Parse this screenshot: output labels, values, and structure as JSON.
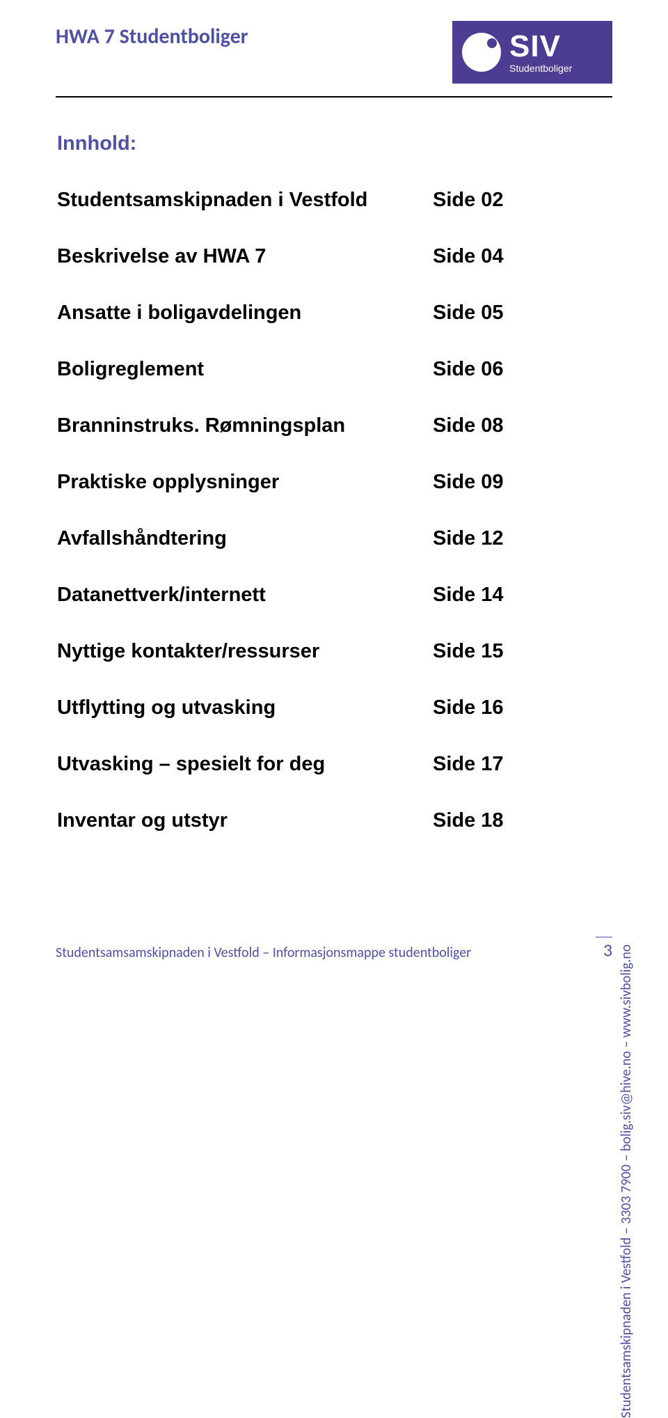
{
  "header": {
    "title": "HWA 7 Studentboliger",
    "logo": {
      "main": "SIV",
      "sub": "Studentboliger",
      "bg_color": "#4c3c92",
      "circle_color": "#ffffff"
    }
  },
  "toc": {
    "heading": "Innhold:",
    "items": [
      {
        "label": "Studentsamskipnaden i Vestfold",
        "page": "Side 02"
      },
      {
        "label": "Beskrivelse av HWA 7",
        "page": "Side 04"
      },
      {
        "label": "Ansatte i boligavdelingen",
        "page": "Side 05"
      },
      {
        "label": "Boligreglement",
        "page": "Side 06"
      },
      {
        "label": "Branninstruks. Rømningsplan",
        "page": "Side 08"
      },
      {
        "label": "Praktiske opplysninger",
        "page": "Side 09"
      },
      {
        "label": "Avfallshåndtering",
        "page": "Side 12"
      },
      {
        "label": "Datanettverk/internett",
        "page": "Side 14"
      },
      {
        "label": "Nyttige kontakter/ressurser",
        "page": "Side 15"
      },
      {
        "label": "Utflytting og utvasking",
        "page": "Side 16"
      },
      {
        "label": "Utvasking – spesielt for deg",
        "page": "Side 17"
      },
      {
        "label": "Inventar og utstyr",
        "page": "Side 18"
      }
    ]
  },
  "side_note": "Studentsamskipnaden i Vestfold – 3303 7900 – bolig.siv@hive.no – www.sivbolig.no",
  "footer": {
    "text": "Studentsamsamskipnaden i Vestfold – Informasjonsmappe studentboliger",
    "page_number": "3"
  },
  "colors": {
    "accent": "#4f52a3",
    "logo_bg": "#4c3c92",
    "text": "#000000",
    "bg": "#ffffff"
  },
  "typography": {
    "title_fontsize": 30,
    "toc_fontsize": 29,
    "footer_fontsize": 20,
    "side_fontsize": 20,
    "page_num_fontsize": 26
  }
}
